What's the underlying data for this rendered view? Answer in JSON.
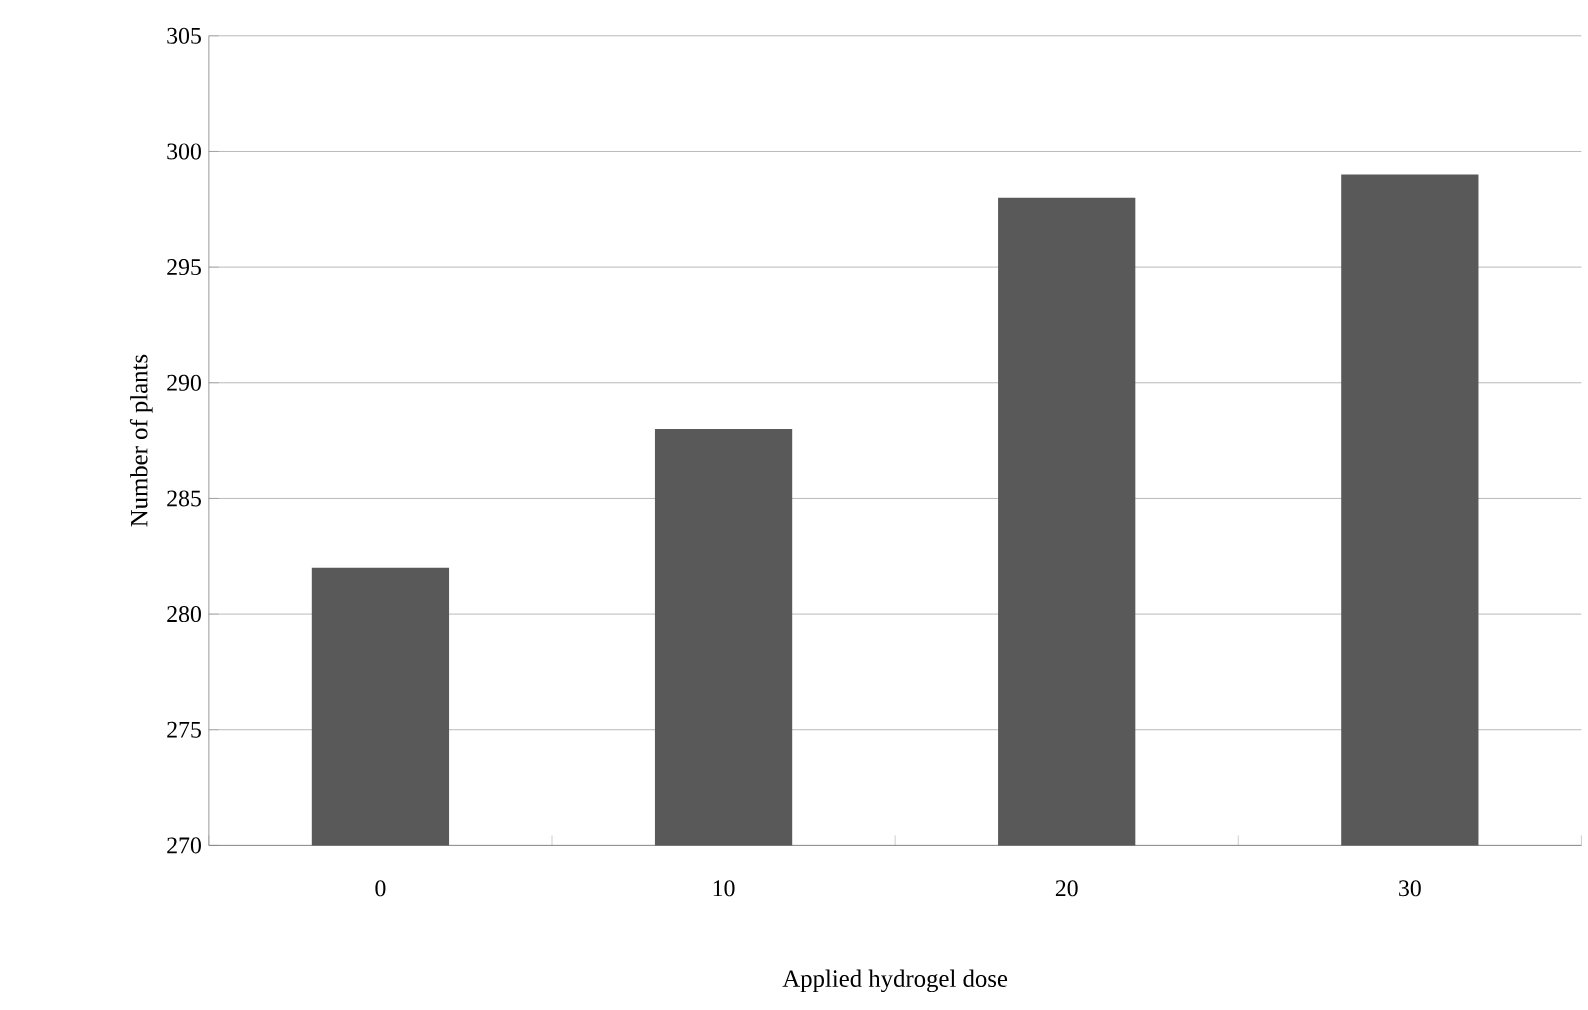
{
  "chart_data": {
    "type": "bar",
    "xlabel": "Applied hydrogel dose",
    "ylabel": "Number of plants",
    "categories": [
      "0",
      "10",
      "20",
      "30"
    ],
    "values": [
      282,
      288,
      298,
      299
    ],
    "color": "#595959",
    "ylim": [
      270,
      305
    ],
    "yticks": [
      270,
      275,
      280,
      285,
      290,
      295,
      300,
      305
    ],
    "grid": "y"
  }
}
